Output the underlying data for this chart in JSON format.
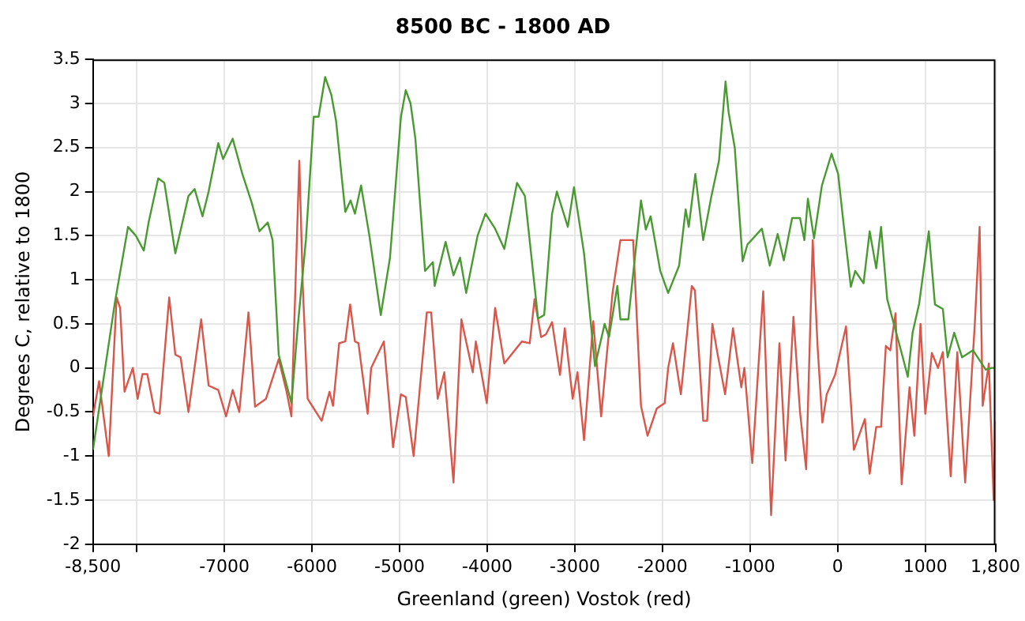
{
  "chart_data": {
    "type": "line",
    "title": "8500 BC - 1800 AD",
    "xlabel": "Greenland (green) Vostok (red)",
    "ylabel": "Degrees C, relative to 1800",
    "xlim": [
      -8500,
      1800
    ],
    "xticks": [
      {
        "value": -8500,
        "label": "-8,500"
      },
      {
        "value": -8000,
        "label": null
      },
      -7000,
      -6000,
      -5000,
      -4000,
      -3000,
      -2000,
      -1000,
      0,
      1000,
      {
        "value": 1800,
        "label": "1,800"
      }
    ],
    "ylim": [
      -2,
      3.5
    ],
    "yticks": [
      -2,
      -1.5,
      -1,
      -0.5,
      0,
      0.5,
      1,
      1.5,
      2,
      2.5,
      3,
      3.5
    ],
    "grid": true,
    "legend": false,
    "marker": "none",
    "line_style": "solid",
    "series": [
      {
        "color": "#4a9a32",
        "x": [
          -8500,
          -8250,
          -8100,
          -8010,
          -7920,
          -7865,
          -7755,
          -7685,
          -7560,
          -7410,
          -7340,
          -7250,
          -7180,
          -7070,
          -7015,
          -6905,
          -6795,
          -6690,
          -6600,
          -6505,
          -6450,
          -6380,
          -6235,
          -6160,
          -6070,
          -5980,
          -5925,
          -5850,
          -5780,
          -5725,
          -5650,
          -5620,
          -5560,
          -5510,
          -5440,
          -5345,
          -5215,
          -5110,
          -4985,
          -4930,
          -4875,
          -4820,
          -4710,
          -4620,
          -4600,
          -4475,
          -4385,
          -4310,
          -4240,
          -4110,
          -4020,
          -3910,
          -3805,
          -3660,
          -3570,
          -3420,
          -3350,
          -3260,
          -3205,
          -3080,
          -3010,
          -2895,
          -2770,
          -2660,
          -2610,
          -2515,
          -2480,
          -2390,
          -2245,
          -2190,
          -2135,
          -2025,
          -1935,
          -1810,
          -1735,
          -1700,
          -1625,
          -1535,
          -1445,
          -1355,
          -1280,
          -1245,
          -1175,
          -1085,
          -1030,
          -865,
          -775,
          -685,
          -615,
          -520,
          -430,
          -380,
          -340,
          -270,
          -180,
          -70,
          5,
          60,
          150,
          200,
          295,
          365,
          440,
          495,
          565,
          730,
          800,
          855,
          930,
          1040,
          1110,
          1200,
          1255,
          1330,
          1420,
          1545,
          1690,
          1760,
          1800
        ],
        "values": [
          -0.93,
          0.74,
          1.6,
          1.5,
          1.33,
          1.65,
          2.15,
          2.1,
          1.3,
          1.95,
          2.03,
          1.72,
          2.0,
          2.55,
          2.37,
          2.6,
          2.2,
          1.88,
          1.55,
          1.65,
          1.45,
          0.15,
          -0.4,
          0.5,
          1.45,
          2.85,
          2.85,
          3.3,
          3.1,
          2.8,
          2.06,
          1.77,
          1.9,
          1.75,
          2.07,
          1.5,
          0.6,
          1.25,
          2.85,
          3.15,
          3.0,
          2.6,
          1.1,
          1.2,
          0.93,
          1.43,
          1.05,
          1.25,
          0.85,
          1.5,
          1.75,
          1.58,
          1.35,
          2.1,
          1.95,
          0.56,
          0.6,
          1.75,
          2.0,
          1.6,
          2.05,
          1.3,
          0.02,
          0.5,
          0.35,
          0.93,
          0.55,
          0.55,
          1.9,
          1.57,
          1.72,
          1.1,
          0.85,
          1.16,
          1.8,
          1.6,
          2.2,
          1.45,
          1.93,
          2.35,
          3.25,
          2.9,
          2.5,
          1.21,
          1.4,
          1.58,
          1.16,
          1.52,
          1.22,
          1.7,
          1.7,
          1.45,
          1.92,
          1.47,
          2.07,
          2.43,
          2.2,
          1.7,
          0.92,
          1.1,
          0.96,
          1.55,
          1.13,
          1.6,
          0.78,
          0.17,
          -0.1,
          0.4,
          0.73,
          1.55,
          0.72,
          0.67,
          0.12,
          0.4,
          0.12,
          0.2,
          -0.02,
          0.0,
          0.0
        ]
      },
      {
        "color": "#d9574a",
        "x": [
          -8500,
          -8430,
          -8320,
          -8230,
          -8190,
          -8140,
          -8045,
          -7990,
          -7935,
          -7880,
          -7795,
          -7740,
          -7630,
          -7560,
          -7500,
          -7410,
          -7265,
          -7180,
          -7070,
          -6980,
          -6905,
          -6830,
          -6725,
          -6650,
          -6525,
          -6380,
          -6290,
          -6235,
          -6145,
          -6105,
          -6050,
          -5890,
          -5800,
          -5760,
          -5690,
          -5620,
          -5565,
          -5510,
          -5470,
          -5365,
          -5325,
          -5180,
          -5075,
          -4985,
          -4930,
          -4840,
          -4690,
          -4640,
          -4565,
          -4490,
          -4385,
          -4295,
          -4165,
          -4130,
          -4005,
          -3910,
          -3805,
          -3605,
          -3515,
          -3460,
          -3385,
          -3330,
          -3260,
          -3170,
          -3115,
          -3025,
          -2970,
          -2895,
          -2790,
          -2700,
          -2570,
          -2480,
          -2335,
          -2245,
          -2170,
          -2065,
          -1975,
          -1935,
          -1880,
          -1790,
          -1665,
          -1630,
          -1535,
          -1490,
          -1430,
          -1375,
          -1285,
          -1195,
          -1100,
          -1065,
          -975,
          -850,
          -760,
          -665,
          -595,
          -505,
          -430,
          -360,
          -285,
          -230,
          -175,
          -125,
          -30,
          95,
          185,
          310,
          365,
          440,
          495,
          550,
          600,
          660,
          730,
          820,
          875,
          945,
          1000,
          1075,
          1145,
          1200,
          1290,
          1365,
          1455,
          1565,
          1620,
          1655,
          1725,
          1780,
          1800
        ],
        "values": [
          -0.55,
          -0.15,
          -1.0,
          0.8,
          0.68,
          -0.27,
          0.0,
          -0.35,
          -0.07,
          -0.07,
          -0.5,
          -0.52,
          0.8,
          0.15,
          0.12,
          -0.5,
          0.55,
          -0.2,
          -0.25,
          -0.55,
          -0.25,
          -0.5,
          0.63,
          -0.44,
          -0.35,
          0.1,
          -0.27,
          -0.55,
          2.35,
          0.92,
          -0.35,
          -0.6,
          -0.27,
          -0.43,
          0.28,
          0.3,
          0.72,
          0.3,
          0.28,
          -0.52,
          0.0,
          0.3,
          -0.9,
          -0.3,
          -0.33,
          -1.0,
          0.63,
          0.63,
          -0.35,
          -0.05,
          -1.3,
          0.55,
          -0.05,
          0.3,
          -0.4,
          0.68,
          0.05,
          0.3,
          0.28,
          0.78,
          0.35,
          0.38,
          0.52,
          -0.08,
          0.45,
          -0.35,
          -0.05,
          -0.82,
          0.53,
          -0.55,
          0.85,
          1.45,
          1.45,
          -0.43,
          -0.77,
          -0.46,
          -0.4,
          0.0,
          0.28,
          -0.3,
          0.93,
          0.88,
          -0.6,
          -0.6,
          0.5,
          0.18,
          -0.3,
          0.45,
          -0.22,
          0.0,
          -1.08,
          0.87,
          -1.67,
          0.28,
          -1.05,
          0.58,
          -0.5,
          -1.15,
          1.45,
          0.25,
          -0.62,
          -0.3,
          -0.08,
          0.47,
          -0.93,
          -0.58,
          -1.2,
          -0.67,
          -0.67,
          0.25,
          0.2,
          0.62,
          -1.32,
          -0.22,
          -0.77,
          0.5,
          -0.52,
          0.17,
          0.0,
          0.18,
          -1.23,
          0.18,
          -1.3,
          0.5,
          1.6,
          -0.43,
          0.05,
          -1.5,
          -0.6
        ]
      }
    ]
  }
}
